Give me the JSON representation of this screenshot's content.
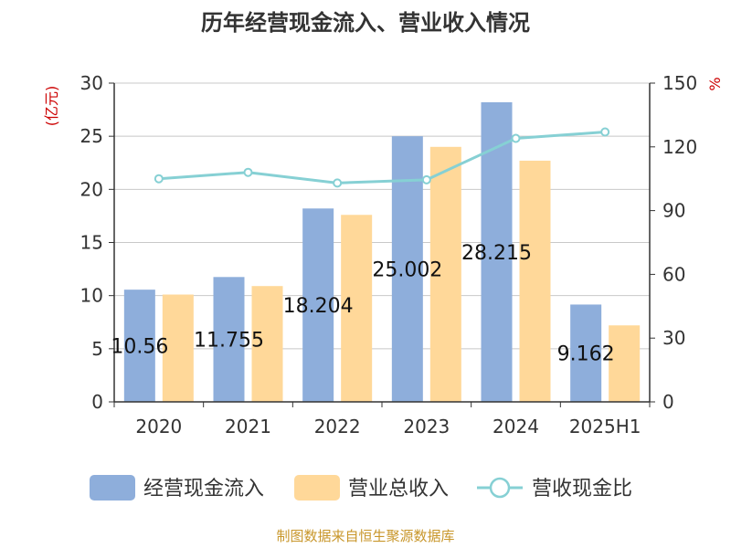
{
  "chart_data": {
    "type": "bar",
    "title": "历年经营现金流入、营业收入情况",
    "categories": [
      "2020",
      "2021",
      "2022",
      "2023",
      "2024",
      "2025H1"
    ],
    "y_left": {
      "unit": "(亿元)",
      "ylim": [
        0,
        30
      ],
      "ticks": [
        "0",
        "5",
        "10",
        "15",
        "20",
        "25",
        "30"
      ]
    },
    "y_right": {
      "unit": "%",
      "ylim": [
        0,
        150
      ],
      "ticks": [
        "0",
        "30",
        "60",
        "90",
        "120",
        "150"
      ]
    },
    "series": [
      {
        "name": "经营现金流入",
        "type": "bar",
        "axis": "left",
        "color": "#8eaedb",
        "values": [
          10.56,
          11.75,
          18.2,
          25.0,
          28.2,
          9.16
        ],
        "labels": [
          "10.56",
          "11.755",
          "18.204",
          "25.002",
          "28.215",
          "9.162"
        ]
      },
      {
        "name": "营业总收入",
        "type": "bar",
        "axis": "left",
        "color": "#ffd899",
        "values": [
          10.1,
          10.9,
          17.6,
          24.0,
          22.7,
          7.2
        ]
      },
      {
        "name": "营收现金比",
        "type": "line",
        "axis": "right",
        "color": "#86d0d4",
        "values": [
          105,
          108,
          103,
          104.5,
          124,
          127
        ]
      }
    ],
    "grid": true,
    "legend_position": "bottom"
  },
  "source_text": "制图数据来自恒生聚源数据库"
}
